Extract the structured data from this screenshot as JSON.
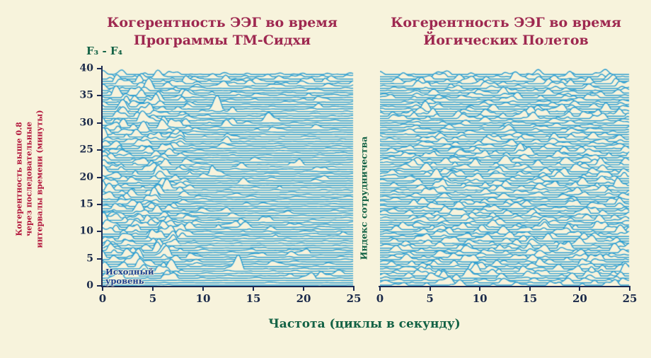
{
  "figure": {
    "colors": {
      "background": "#f7f3dc",
      "plot_bg": "#f7f3dc",
      "trace": "#2f9fd1",
      "axis": "#1d2a52",
      "title": "#9e2850",
      "green_label": "#136245",
      "red_label": "#b3173d",
      "annotation_blue": "#1c3f8f"
    },
    "left_panel": {
      "title_line1": "Когерентность ЭЭГ во время",
      "title_line2": "Программы ТМ-Сидхи",
      "electrode_label": "F₃ - F₄",
      "baseline_line1": "Исходный",
      "baseline_line2": "уровень"
    },
    "right_panel": {
      "title_line1": "Когерентность ЭЭГ во время",
      "title_line2": "Йогических Полетов",
      "side_label": "Индекс сотрудничества"
    },
    "left_ylabel": "Когерентность выше 0.8 через последовательные интервалы времени (минуты)",
    "xlabel": "Частота (циклы в секунду)"
  },
  "chart_data": [
    {
      "type": "area",
      "subtype": "ridgeline-coherence-spectrogram",
      "title": "Когерентность ЭЭГ во время Программы ТМ-Сидхи",
      "xlabel": "Частота (циклы в секунду)",
      "ylabel": "Когерентность выше 0.8 через последовательные интервалы времени (минуты)",
      "electrode_pair": "F₃ - F₄",
      "annotation": "Исходный уровень",
      "x_ticks": [
        0,
        5,
        10,
        15,
        20,
        25
      ],
      "y_ticks": [
        0,
        5,
        10,
        15,
        20,
        25,
        30,
        35,
        40
      ],
      "xlim": [
        0,
        25
      ],
      "ylim": [
        0,
        40
      ],
      "grid": false,
      "legend": "none",
      "description": "Dense stacked EEG coherence traces over ~40 minutes; strong wavy coherence activity concentrated below ~9 Hz with sporadic bursts at higher frequencies; flat baseline rows at 0 minutes.",
      "render": {
        "rows": 92,
        "seed": 11,
        "amp": 9,
        "bump_prob": 0.5,
        "profile": "left",
        "flat_bottom": true
      }
    },
    {
      "type": "area",
      "subtype": "ridgeline-coherence-spectrogram",
      "title": "Когерентность ЭЭГ во время Йогических Полетов",
      "xlabel": "Частота (циклы в секунду)",
      "ylabel": "Индекс сотрудничества",
      "x_ticks": [
        0,
        5,
        10,
        15,
        20,
        25
      ],
      "xlim": [
        0,
        25
      ],
      "ylim": [
        0,
        40
      ],
      "grid": false,
      "legend": "none",
      "description": "Dense stacked EEG coherence traces; broadband wavy coherence activity across all frequencies 0–25 Hz during yogic flying.",
      "render": {
        "rows": 92,
        "seed": 23,
        "amp": 7.5,
        "bump_prob": 0.9,
        "profile": "right",
        "flat_bottom": false
      }
    }
  ]
}
